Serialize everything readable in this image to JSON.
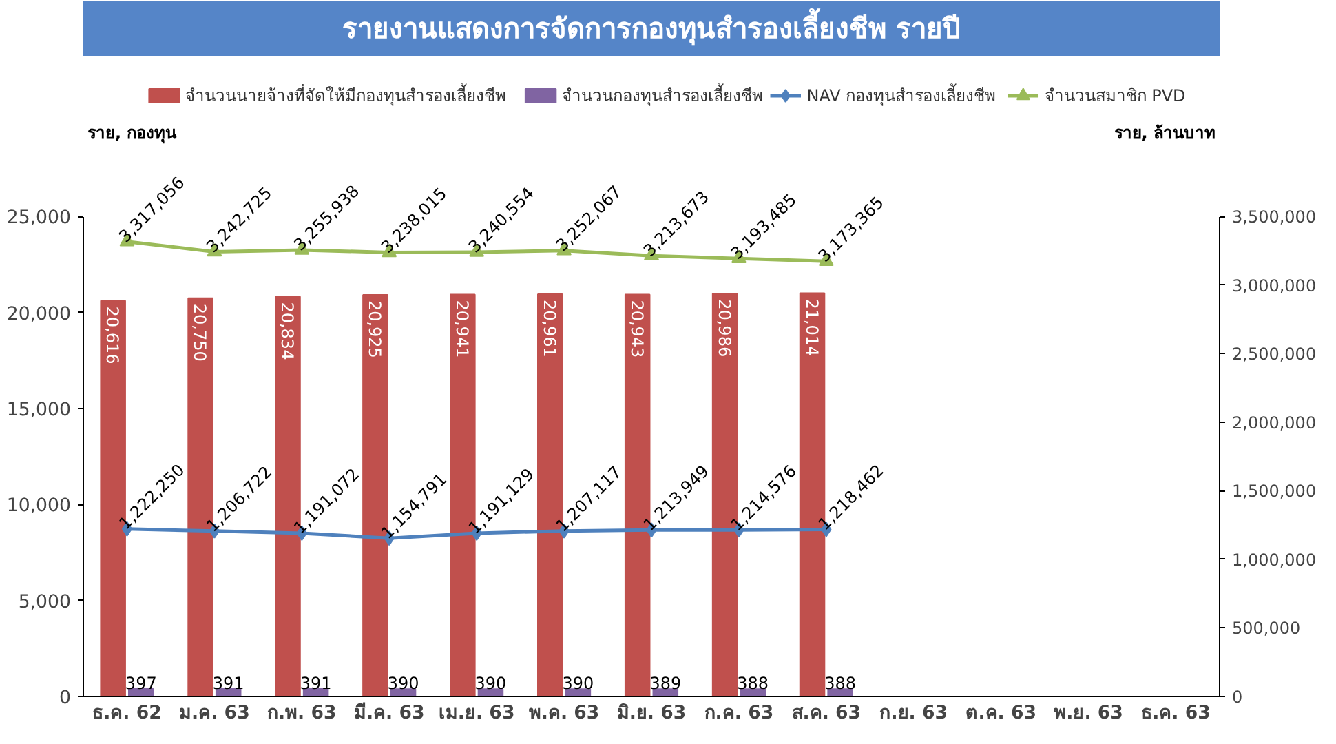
{
  "chart_data": {
    "type": "bar",
    "title": "รายงานแสดงการจัดการกองทุนสำรองเลี้ยงชีพ รายปี",
    "ylabel": "ราย, กองทุน",
    "y2label": "ราย, ล้านบาท",
    "categories": [
      "ธ.ค. 62",
      "ม.ค. 63",
      "ก.พ. 63",
      "มี.ค. 63",
      "เม.ย. 63",
      "พ.ค. 63",
      "มิ.ย. 63",
      "ก.ค. 63",
      "ส.ค. 63",
      "ก.ย. 63",
      "ต.ค. 63",
      "พ.ย. 63",
      "ธ.ค. 63"
    ],
    "series": [
      {
        "name": "จำนวนนายจ้างที่จัดให้มีกองทุนสำรองเลี้ยงชีพ",
        "color": "#c0504d",
        "values": [
          20616,
          20750,
          20834,
          20925,
          20941,
          20961,
          20943,
          20986,
          21014,
          null,
          null,
          null,
          null
        ],
        "value_labels": [
          "20,616",
          "20,750",
          "20,834",
          "20,925",
          "20,941",
          "20,961",
          "20,943",
          "20,986",
          "21,014",
          null,
          null,
          null,
          null
        ]
      },
      {
        "name": "จำนวนกองทุนสำรองเลี้ยงชีพ",
        "color": "#8064a2",
        "values": [
          397,
          391,
          391,
          390,
          390,
          390,
          389,
          388,
          388,
          null,
          null,
          null,
          null
        ],
        "value_labels": [
          "397",
          "391",
          "391",
          "390",
          "390",
          "390",
          "389",
          "388",
          "388",
          null,
          null,
          null,
          null
        ]
      },
      {
        "name": "NAV กองทุนสำรองเลี้ยงชีพ",
        "type": "line",
        "axis": "y2",
        "marker": "diamond",
        "color": "#4f81bd",
        "values": [
          1222250,
          1206722,
          1191072,
          1154791,
          1191129,
          1207117,
          1213949,
          1214576,
          1218462,
          null,
          null,
          null,
          null
        ],
        "value_labels": [
          "1,222,250",
          "1,206,722",
          "1,191,072",
          "1,154,791",
          "1,191,129",
          "1,207,117",
          "1,213,949",
          "1,214,576",
          "1,218,462",
          null,
          null,
          null,
          null
        ]
      },
      {
        "name": "จำนวนสมาชิก PVD",
        "type": "line",
        "axis": "y2",
        "marker": "triangle",
        "color": "#9bbb59",
        "values": [
          3317056,
          3242725,
          3255938,
          3238015,
          3240554,
          3252067,
          3213673,
          3193485,
          3173365,
          null,
          null,
          null,
          null
        ],
        "value_labels": [
          "3,317,056",
          "3,242,725",
          "3,255,938",
          "3,238,015",
          "3,240,554",
          "3,252,067",
          "3,213,673",
          "3,193,485",
          "3,173,365",
          null,
          null,
          null,
          null
        ]
      }
    ],
    "ylim": [
      0,
      25000
    ],
    "yticks": [
      0,
      {
        "value": 5000,
        "label": "5,000"
      },
      {
        "value": 10000,
        "label": "10,000"
      },
      {
        "value": 15000,
        "label": "15,000"
      },
      {
        "value": 20000,
        "label": "20,000"
      },
      {
        "value": 25000,
        "label": "25,000"
      }
    ],
    "y2lim": [
      0,
      3500000
    ],
    "y2ticks": [
      0,
      {
        "value": 500000,
        "label": "500,000"
      },
      {
        "value": 1000000,
        "label": "1,000,000"
      },
      {
        "value": 1500000,
        "label": "1,500,000"
      },
      {
        "value": 2000000,
        "label": "2,000,000"
      },
      {
        "value": 2500000,
        "label": "2,500,000"
      },
      {
        "value": 3000000,
        "label": "3,000,000"
      },
      {
        "value": 3500000,
        "label": "3,500,000"
      }
    ],
    "legend": "top",
    "grid": false
  }
}
